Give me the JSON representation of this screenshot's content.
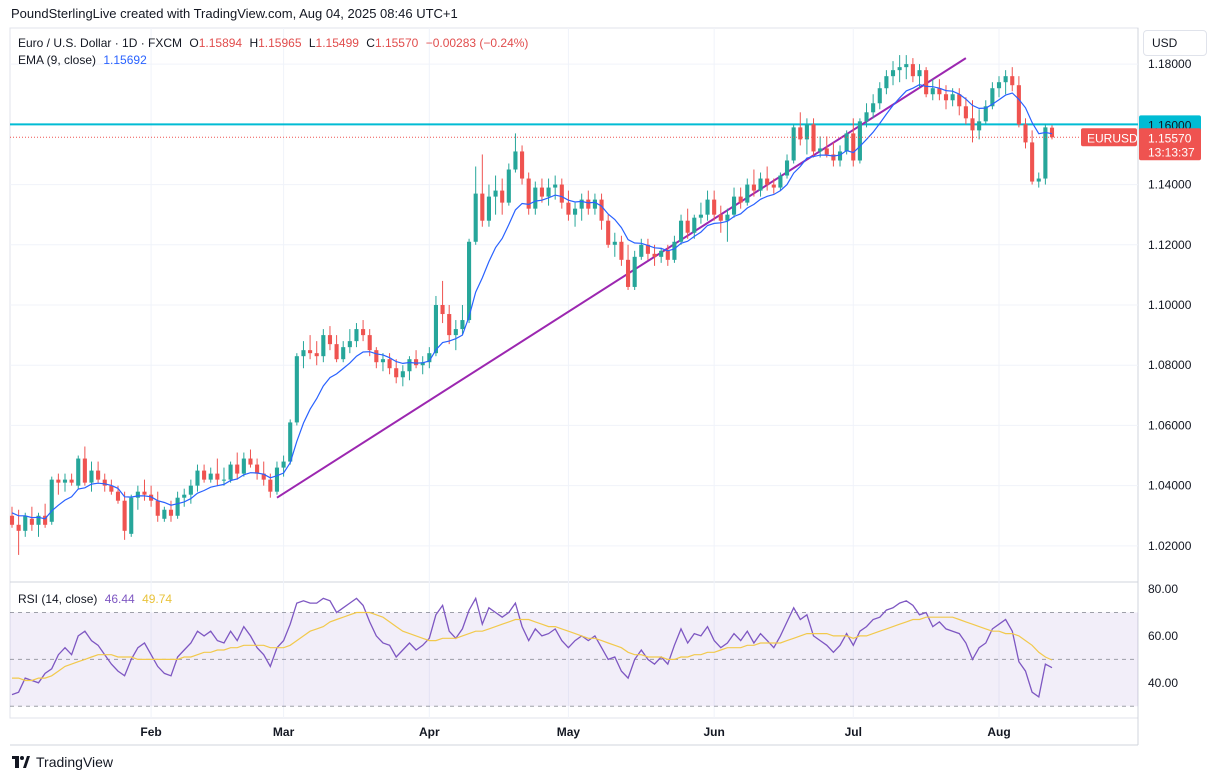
{
  "header": {
    "attribution": "PoundSterlingLive created with TradingView.com, Aug 04, 2025 08:46 UTC+1"
  },
  "legend": {
    "symbol": "Euro / U.S. Dollar · 1D · FXCM",
    "o_label": "O",
    "o_value": "1.15894",
    "h_label": "H",
    "h_value": "1.15965",
    "l_label": "L",
    "l_value": "1.15499",
    "c_label": "C",
    "c_value": "1.15570",
    "change": "−0.00283 (−0.24%)",
    "ema_label": "EMA (9, close)",
    "ema_value": "1.15692",
    "rsi_label": "RSI (14, close)",
    "rsi_value": "46.44",
    "rsi_ma_value": "49.74"
  },
  "currency_button": "USD",
  "price_tags": {
    "level_label": "1.16000",
    "symbol_tag": "EURUSD",
    "last_price": "1.15570",
    "countdown": "13:13:37"
  },
  "footer": {
    "brand": "TradingView"
  },
  "colors": {
    "up": "#26a69a",
    "down": "#ef5350",
    "ema": "#2962ff",
    "trendline": "#9c27b0",
    "level": "#00bcd4",
    "rsi": "#7e57c2",
    "rsi_ma": "#f2c94c"
  },
  "chart_data": {
    "type": "candlestick",
    "symbol": "EURUSD",
    "timeframe": "1D",
    "y_axis_ticks": [
      "1.18000",
      "1.16000",
      "1.14000",
      "1.12000",
      "1.10000",
      "1.08000",
      "1.06000",
      "1.04000",
      "1.02000"
    ],
    "ylim": [
      1.008,
      1.192
    ],
    "x_axis_labels": [
      "Feb",
      "Mar",
      "Apr",
      "May",
      "Jun",
      "Jul",
      "Aug"
    ],
    "horizontal_level": 1.16,
    "trendline": {
      "from": {
        "date": "Feb 28",
        "price": 1.036
      },
      "to": {
        "date": "Jul 25",
        "price": 1.182
      }
    },
    "ohlc": [
      [
        1.03,
        1.033,
        1.026,
        1.027
      ],
      [
        1.027,
        1.032,
        1.017,
        1.025
      ],
      [
        1.025,
        1.031,
        1.023,
        1.03
      ],
      [
        1.029,
        1.033,
        1.025,
        1.027
      ],
      [
        1.027,
        1.031,
        1.023,
        1.03
      ],
      [
        1.03,
        1.034,
        1.026,
        1.027
      ],
      [
        1.028,
        1.043,
        1.027,
        1.042
      ],
      [
        1.042,
        1.044,
        1.037,
        1.041
      ],
      [
        1.041,
        1.044,
        1.038,
        1.042
      ],
      [
        1.042,
        1.044,
        1.04,
        1.041
      ],
      [
        1.04,
        1.05,
        1.039,
        1.049
      ],
      [
        1.049,
        1.053,
        1.04,
        1.041
      ],
      [
        1.041,
        1.048,
        1.038,
        1.045
      ],
      [
        1.045,
        1.048,
        1.041,
        1.042
      ],
      [
        1.042,
        1.044,
        1.038,
        1.04
      ],
      [
        1.04,
        1.042,
        1.037,
        1.038
      ],
      [
        1.038,
        1.04,
        1.034,
        1.035
      ],
      [
        1.035,
        1.038,
        1.022,
        1.025
      ],
      [
        1.024,
        1.037,
        1.023,
        1.036
      ],
      [
        1.036,
        1.04,
        1.032,
        1.038
      ],
      [
        1.038,
        1.042,
        1.035,
        1.037
      ],
      [
        1.037,
        1.04,
        1.033,
        1.035
      ],
      [
        1.035,
        1.038,
        1.028,
        1.03
      ],
      [
        1.029,
        1.033,
        1.028,
        1.032
      ],
      [
        1.032,
        1.035,
        1.028,
        1.03
      ],
      [
        1.03,
        1.038,
        1.029,
        1.036
      ],
      [
        1.036,
        1.039,
        1.033,
        1.037
      ],
      [
        1.037,
        1.042,
        1.034,
        1.04
      ],
      [
        1.04,
        1.047,
        1.038,
        1.045
      ],
      [
        1.045,
        1.047,
        1.041,
        1.042
      ],
      [
        1.042,
        1.046,
        1.041,
        1.044
      ],
      [
        1.044,
        1.049,
        1.04,
        1.042
      ],
      [
        1.042,
        1.046,
        1.04,
        1.042
      ],
      [
        1.042,
        1.048,
        1.041,
        1.047
      ],
      [
        1.047,
        1.051,
        1.042,
        1.044
      ],
      [
        1.044,
        1.051,
        1.043,
        1.049
      ],
      [
        1.049,
        1.052,
        1.046,
        1.047
      ],
      [
        1.047,
        1.049,
        1.042,
        1.044
      ],
      [
        1.044,
        1.048,
        1.04,
        1.042
      ],
      [
        1.042,
        1.044,
        1.036,
        1.038
      ],
      [
        1.038,
        1.048,
        1.037,
        1.046
      ],
      [
        1.046,
        1.05,
        1.043,
        1.048
      ],
      [
        1.048,
        1.062,
        1.047,
        1.061
      ],
      [
        1.061,
        1.084,
        1.06,
        1.083
      ],
      [
        1.083,
        1.088,
        1.079,
        1.085
      ],
      [
        1.085,
        1.09,
        1.082,
        1.084
      ],
      [
        1.084,
        1.088,
        1.08,
        1.083
      ],
      [
        1.083,
        1.092,
        1.081,
        1.09
      ],
      [
        1.09,
        1.093,
        1.085,
        1.087
      ],
      [
        1.087,
        1.09,
        1.081,
        1.082
      ],
      [
        1.082,
        1.088,
        1.081,
        1.086
      ],
      [
        1.086,
        1.092,
        1.084,
        1.088
      ],
      [
        1.088,
        1.094,
        1.086,
        1.092
      ],
      [
        1.092,
        1.095,
        1.088,
        1.09
      ],
      [
        1.09,
        1.092,
        1.083,
        1.085
      ],
      [
        1.085,
        1.086,
        1.079,
        1.081
      ],
      [
        1.081,
        1.084,
        1.078,
        1.082
      ],
      [
        1.082,
        1.084,
        1.077,
        1.079
      ],
      [
        1.079,
        1.082,
        1.074,
        1.076
      ],
      [
        1.076,
        1.08,
        1.073,
        1.078
      ],
      [
        1.078,
        1.083,
        1.075,
        1.082
      ],
      [
        1.082,
        1.085,
        1.079,
        1.08
      ],
      [
        1.08,
        1.083,
        1.077,
        1.081
      ],
      [
        1.081,
        1.086,
        1.079,
        1.084
      ],
      [
        1.084,
        1.103,
        1.083,
        1.1
      ],
      [
        1.1,
        1.108,
        1.094,
        1.097
      ],
      [
        1.097,
        1.1,
        1.087,
        1.09
      ],
      [
        1.09,
        1.095,
        1.085,
        1.092
      ],
      [
        1.092,
        1.1,
        1.09,
        1.095
      ],
      [
        1.095,
        1.122,
        1.094,
        1.121
      ],
      [
        1.121,
        1.146,
        1.12,
        1.137
      ],
      [
        1.137,
        1.15,
        1.126,
        1.128
      ],
      [
        1.128,
        1.14,
        1.126,
        1.136
      ],
      [
        1.136,
        1.143,
        1.13,
        1.138
      ],
      [
        1.138,
        1.142,
        1.13,
        1.134
      ],
      [
        1.134,
        1.147,
        1.133,
        1.145
      ],
      [
        1.145,
        1.157,
        1.144,
        1.151
      ],
      [
        1.151,
        1.153,
        1.14,
        1.142
      ],
      [
        1.142,
        1.144,
        1.13,
        1.132
      ],
      [
        1.132,
        1.141,
        1.13,
        1.139
      ],
      [
        1.139,
        1.142,
        1.134,
        1.136
      ],
      [
        1.136,
        1.142,
        1.133,
        1.139
      ],
      [
        1.139,
        1.143,
        1.135,
        1.14
      ],
      [
        1.14,
        1.142,
        1.132,
        1.134
      ],
      [
        1.134,
        1.138,
        1.128,
        1.13
      ],
      [
        1.13,
        1.134,
        1.126,
        1.132
      ],
      [
        1.132,
        1.137,
        1.128,
        1.135
      ],
      [
        1.135,
        1.138,
        1.13,
        1.132
      ],
      [
        1.132,
        1.137,
        1.13,
        1.135
      ],
      [
        1.135,
        1.137,
        1.125,
        1.128
      ],
      [
        1.128,
        1.13,
        1.119,
        1.12
      ],
      [
        1.12,
        1.124,
        1.116,
        1.121
      ],
      [
        1.121,
        1.123,
        1.113,
        1.115
      ],
      [
        1.115,
        1.12,
        1.105,
        1.106
      ],
      [
        1.106,
        1.118,
        1.105,
        1.116
      ],
      [
        1.116,
        1.122,
        1.115,
        1.12
      ],
      [
        1.12,
        1.122,
        1.115,
        1.117
      ],
      [
        1.117,
        1.12,
        1.113,
        1.116
      ],
      [
        1.116,
        1.119,
        1.114,
        1.118
      ],
      [
        1.118,
        1.12,
        1.113,
        1.115
      ],
      [
        1.115,
        1.123,
        1.114,
        1.121
      ],
      [
        1.121,
        1.13,
        1.12,
        1.128
      ],
      [
        1.128,
        1.132,
        1.122,
        1.124
      ],
      [
        1.124,
        1.13,
        1.122,
        1.129
      ],
      [
        1.129,
        1.134,
        1.127,
        1.13
      ],
      [
        1.13,
        1.138,
        1.128,
        1.135
      ],
      [
        1.135,
        1.138,
        1.128,
        1.13
      ],
      [
        1.13,
        1.133,
        1.124,
        1.128
      ],
      [
        1.128,
        1.132,
        1.121,
        1.13
      ],
      [
        1.13,
        1.139,
        1.129,
        1.136
      ],
      [
        1.136,
        1.139,
        1.132,
        1.134
      ],
      [
        1.134,
        1.142,
        1.133,
        1.14
      ],
      [
        1.14,
        1.145,
        1.136,
        1.138
      ],
      [
        1.138,
        1.144,
        1.136,
        1.142
      ],
      [
        1.142,
        1.146,
        1.138,
        1.14
      ],
      [
        1.14,
        1.142,
        1.137,
        1.139
      ],
      [
        1.139,
        1.144,
        1.138,
        1.143
      ],
      [
        1.143,
        1.15,
        1.142,
        1.148
      ],
      [
        1.148,
        1.16,
        1.147,
        1.159
      ],
      [
        1.159,
        1.164,
        1.153,
        1.155
      ],
      [
        1.155,
        1.162,
        1.15,
        1.16
      ],
      [
        1.16,
        1.162,
        1.149,
        1.151
      ],
      [
        1.151,
        1.156,
        1.149,
        1.152
      ],
      [
        1.152,
        1.156,
        1.149,
        1.15
      ],
      [
        1.15,
        1.154,
        1.146,
        1.148
      ],
      [
        1.148,
        1.153,
        1.146,
        1.151
      ],
      [
        1.151,
        1.158,
        1.15,
        1.157
      ],
      [
        1.157,
        1.162,
        1.146,
        1.148
      ],
      [
        1.148,
        1.162,
        1.147,
        1.161
      ],
      [
        1.161,
        1.167,
        1.159,
        1.164
      ],
      [
        1.164,
        1.17,
        1.162,
        1.167
      ],
      [
        1.167,
        1.174,
        1.165,
        1.172
      ],
      [
        1.172,
        1.178,
        1.17,
        1.176
      ],
      [
        1.176,
        1.181,
        1.173,
        1.178
      ],
      [
        1.178,
        1.183,
        1.174,
        1.179
      ],
      [
        1.179,
        1.183,
        1.175,
        1.18
      ],
      [
        1.18,
        1.182,
        1.174,
        1.176
      ],
      [
        1.176,
        1.18,
        1.172,
        1.178
      ],
      [
        1.178,
        1.179,
        1.169,
        1.17
      ],
      [
        1.17,
        1.175,
        1.168,
        1.172
      ],
      [
        1.172,
        1.175,
        1.168,
        1.17
      ],
      [
        1.17,
        1.173,
        1.165,
        1.168
      ],
      [
        1.168,
        1.172,
        1.166,
        1.17
      ],
      [
        1.17,
        1.172,
        1.163,
        1.166
      ],
      [
        1.166,
        1.169,
        1.16,
        1.162
      ],
      [
        1.162,
        1.168,
        1.154,
        1.158
      ],
      [
        1.158,
        1.165,
        1.155,
        1.161
      ],
      [
        1.161,
        1.168,
        1.16,
        1.166
      ],
      [
        1.166,
        1.174,
        1.165,
        1.172
      ],
      [
        1.172,
        1.176,
        1.169,
        1.174
      ],
      [
        1.174,
        1.178,
        1.17,
        1.176
      ],
      [
        1.176,
        1.179,
        1.171,
        1.173
      ],
      [
        1.173,
        1.176,
        1.159,
        1.16
      ],
      [
        1.16,
        1.162,
        1.152,
        1.154
      ],
      [
        1.154,
        1.158,
        1.14,
        1.141
      ],
      [
        1.141,
        1.144,
        1.139,
        1.142
      ],
      [
        1.142,
        1.16,
        1.14,
        1.159
      ],
      [
        1.1589,
        1.1597,
        1.155,
        1.1557
      ]
    ],
    "ema": [
      1.031,
      1.03,
      1.03,
      1.0294,
      1.0295,
      1.029,
      1.0316,
      1.0335,
      1.0352,
      1.0363,
      1.0389,
      1.0393,
      1.0405,
      1.0408,
      1.0406,
      1.0401,
      1.0391,
      1.0363,
      1.0362,
      1.0366,
      1.0366,
      1.0363,
      1.035,
      1.0344,
      1.0335,
      1.034,
      1.0346,
      1.0357,
      1.0375,
      1.0384,
      1.0395,
      1.04,
      1.0404,
      1.0417,
      1.0422,
      1.0436,
      1.0443,
      1.0442,
      1.0438,
      1.0426,
      1.0433,
      1.0442,
      1.0476,
      1.0547,
      1.0608,
      1.0654,
      1.0689,
      1.0731,
      1.0759,
      1.0771,
      1.0789,
      1.0807,
      1.083,
      1.0844,
      1.0845,
      1.0838,
      1.0834,
      1.0825,
      1.0812,
      1.0806,
      1.0809,
      1.0807,
      1.0808,
      1.0814,
      1.0851,
      1.0875,
      1.088,
      1.0888,
      1.09,
      1.0962,
      1.1043,
      1.109,
      1.1144,
      1.1191,
      1.1221,
      1.1267,
      1.1316,
      1.1337,
      1.1334,
      1.1345,
      1.1348,
      1.1356,
      1.1365,
      1.136,
      1.1348,
      1.1342,
      1.1344,
      1.1339,
      1.1341,
      1.1328,
      1.1302,
      1.1284,
      1.1257,
      1.1217,
      1.1206,
      1.1205,
      1.1198,
      1.119,
      1.1188,
      1.118,
      1.1186,
      1.1205,
      1.1212,
      1.1228,
      1.1242,
      1.1264,
      1.1271,
      1.1273,
      1.1278,
      1.1294,
      1.1303,
      1.1322,
      1.1334,
      1.1351,
      1.1361,
      1.1367,
      1.138,
      1.14,
      1.1438,
      1.146,
      1.1488,
      1.1493,
      1.1498,
      1.1498,
      1.1495,
      1.1498,
      1.1513,
      1.1506,
      1.1527,
      1.155,
      1.1574,
      1.1603,
      1.1634,
      1.1663,
      1.1688,
      1.1711,
      1.172,
      1.1732,
      1.1726,
      1.1725,
      1.172,
      1.1712,
      1.171,
      1.17,
      1.1684,
      1.1663,
      1.1653,
      1.1654,
      1.1667,
      1.1682,
      1.1697,
      1.1704,
      1.1683,
      1.1655,
      1.1606,
      1.1569,
      1.1573,
      1.1569
    ],
    "rsi_axis_ticks": [
      "80.00",
      "60.00",
      "40.00"
    ],
    "rsi_ylim": [
      25,
      83
    ],
    "rsi_bands": {
      "upper": 70,
      "middle": 50,
      "lower": 30
    },
    "rsi": [
      35,
      36,
      42,
      41,
      40,
      44,
      46,
      52,
      55,
      52,
      60,
      62,
      58,
      56,
      52,
      48,
      45,
      43,
      50,
      55,
      57,
      52,
      47,
      44,
      43,
      51,
      54,
      57,
      62,
      60,
      62,
      58,
      57,
      62,
      58,
      64,
      60,
      55,
      52,
      47,
      55,
      58,
      65,
      74,
      75,
      74,
      74,
      76,
      75,
      70,
      72,
      74,
      76,
      73,
      66,
      60,
      57,
      56,
      51,
      54,
      57,
      54,
      56,
      59,
      69,
      73,
      62,
      59,
      63,
      71,
      76,
      65,
      72,
      70,
      68,
      70,
      74,
      64,
      58,
      63,
      60,
      61,
      63,
      58,
      55,
      58,
      60,
      58,
      60,
      55,
      50,
      51,
      45,
      42,
      50,
      54,
      50,
      48,
      51,
      48,
      56,
      63,
      57,
      61,
      60,
      64,
      58,
      55,
      57,
      61,
      58,
      62,
      57,
      61,
      58,
      55,
      60,
      66,
      72,
      67,
      69,
      60,
      58,
      56,
      53,
      56,
      61,
      56,
      62,
      64,
      67,
      68,
      71,
      72,
      74,
      75,
      73,
      69,
      70,
      64,
      66,
      63,
      62,
      61,
      57,
      50,
      55,
      57,
      63,
      65,
      67,
      62,
      49,
      45,
      36,
      34,
      48,
      46.44
    ],
    "rsi_ma": [
      42,
      42,
      41,
      41,
      42,
      42,
      43,
      45,
      47,
      48,
      49,
      50,
      51,
      52,
      52,
      52,
      51,
      51,
      51,
      50,
      50,
      50,
      50,
      50,
      50,
      50,
      51,
      51,
      52,
      53,
      53,
      54,
      54,
      55,
      55,
      56,
      56,
      56,
      56,
      55,
      55,
      55,
      56,
      58,
      60,
      62,
      63,
      64,
      66,
      67,
      68,
      69,
      70,
      70,
      70,
      69,
      68,
      66,
      64,
      62,
      61,
      60,
      59,
      58,
      58,
      59,
      59,
      59,
      60,
      61,
      62,
      62,
      63,
      64,
      65,
      66,
      67,
      67,
      67,
      66,
      65,
      64,
      64,
      63,
      62,
      61,
      60,
      59,
      59,
      58,
      57,
      56,
      55,
      53,
      52,
      52,
      51,
      51,
      51,
      50,
      50,
      51,
      51,
      52,
      52,
      53,
      53,
      54,
      55,
      55,
      55,
      56,
      56,
      57,
      57,
      57,
      57,
      58,
      59,
      60,
      61,
      61,
      61,
      61,
      60,
      60,
      60,
      59,
      60,
      60,
      61,
      62,
      63,
      64,
      65,
      66,
      67,
      67,
      68,
      68,
      68,
      68,
      68,
      67,
      66,
      65,
      64,
      63,
      62,
      62,
      61,
      61,
      60,
      58,
      56,
      53,
      51,
      49.74
    ]
  }
}
